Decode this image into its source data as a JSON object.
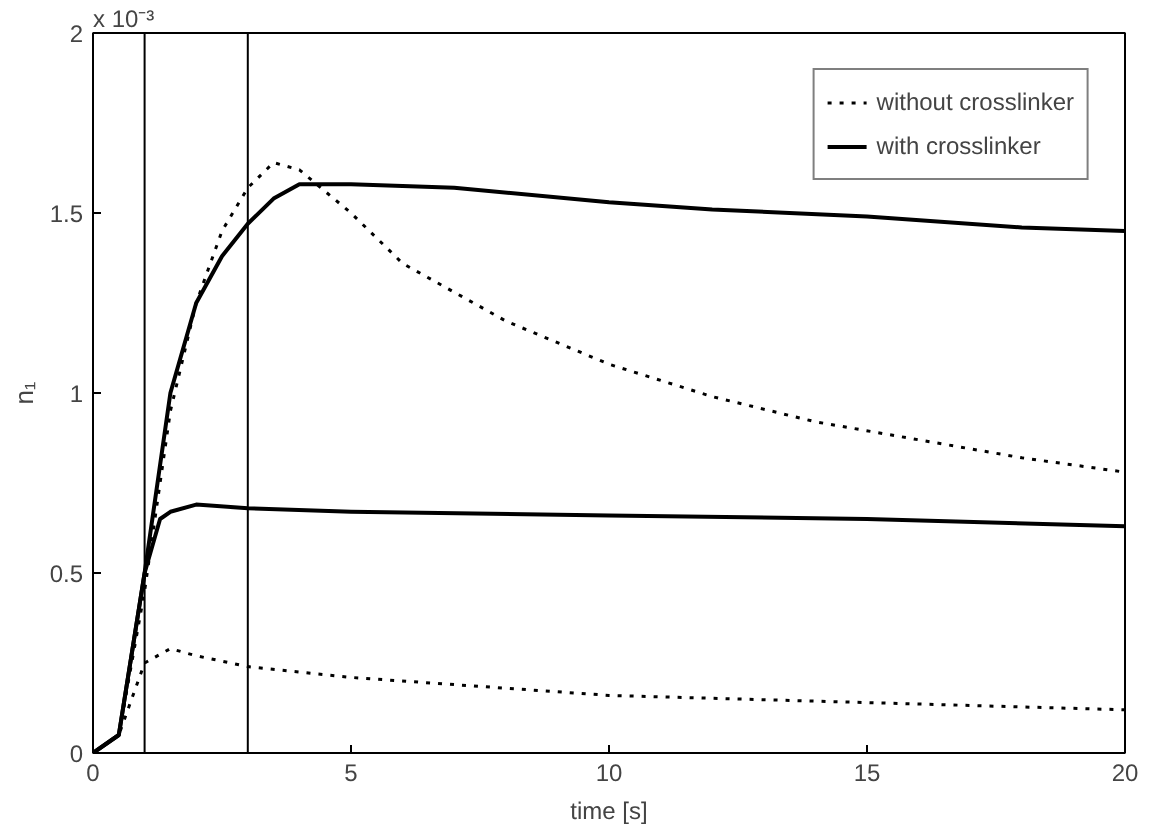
{
  "chart_data": {
    "type": "line",
    "xlabel": "time [s]",
    "ylabel": "n₁",
    "annotations": [
      "x 10⁻³"
    ],
    "xlim": [
      0,
      20
    ],
    "ylim": [
      0,
      2
    ],
    "xticks": [
      0,
      5,
      10,
      15,
      20
    ],
    "yticks": [
      0,
      0.5,
      1,
      1.5,
      2
    ],
    "grid": false,
    "legend": "top right",
    "marker": "none",
    "ref_lines": [
      {
        "axis": "x",
        "value": 1,
        "color": "#000000"
      },
      {
        "axis": "x",
        "value": 3,
        "color": "#000000"
      }
    ],
    "series": [
      {
        "name": "without crosslinker",
        "color": "#000000",
        "line_style": "dotted",
        "x": [
          0,
          0.5,
          1,
          1.5,
          2,
          2.5,
          3,
          3.5,
          4,
          5,
          6,
          7,
          8,
          10,
          12,
          14,
          16,
          18,
          20
        ],
        "values": [
          0,
          0.05,
          0.45,
          0.95,
          1.25,
          1.45,
          1.57,
          1.64,
          1.62,
          1.5,
          1.36,
          1.28,
          1.2,
          1.08,
          0.99,
          0.92,
          0.87,
          0.82,
          0.78
        ]
      },
      {
        "name": "with crosslinker",
        "color": "#000000",
        "line_style": "solid",
        "x": [
          0,
          0.5,
          1,
          1.5,
          2,
          2.5,
          3,
          3.5,
          4,
          5,
          7,
          10,
          12,
          15,
          18,
          20
        ],
        "values": [
          0,
          0.05,
          0.5,
          1.0,
          1.25,
          1.38,
          1.47,
          1.54,
          1.58,
          1.58,
          1.57,
          1.53,
          1.51,
          1.49,
          1.46,
          1.45
        ]
      },
      {
        "color": "#000000",
        "line_style": "solid",
        "x": [
          0,
          0.5,
          1,
          1.3,
          1.5,
          2,
          3,
          5,
          10,
          15,
          20
        ],
        "values": [
          0,
          0.05,
          0.5,
          0.65,
          0.67,
          0.69,
          0.68,
          0.67,
          0.66,
          0.65,
          0.63
        ]
      },
      {
        "color": "#000000",
        "line_style": "dotted",
        "x": [
          0,
          0.5,
          1,
          1.5,
          2,
          3,
          5,
          8,
          10,
          15,
          20
        ],
        "values": [
          0,
          0.05,
          0.25,
          0.29,
          0.27,
          0.24,
          0.21,
          0.18,
          0.16,
          0.14,
          0.12
        ]
      }
    ]
  }
}
